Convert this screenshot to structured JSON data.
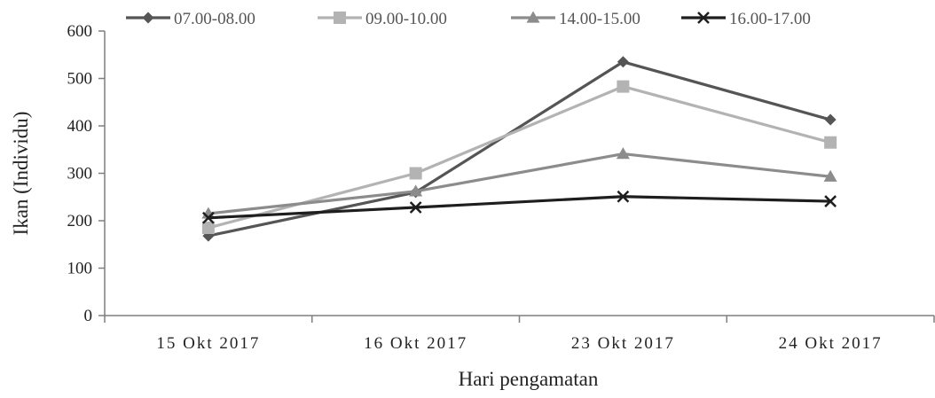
{
  "chart_data": {
    "type": "line",
    "categories": [
      "15 Okt 2017",
      "16 Okt 2017",
      "23 Okt 2017",
      "24 Okt 2017"
    ],
    "xlabel": "Hari pengamatan",
    "ylabel": "Ikan (Individu)",
    "ylim": [
      0,
      600
    ],
    "yticks": [
      0,
      100,
      200,
      300,
      400,
      500,
      600
    ],
    "grid": false,
    "legend_position": "top",
    "series": [
      {
        "name": "07.00-08.00",
        "values": [
          168,
          260,
          535,
          413
        ],
        "color": "#555555",
        "marker": "diamond"
      },
      {
        "name": "09.00-10.00",
        "values": [
          185,
          300,
          483,
          365
        ],
        "color": "#b3b3b3",
        "marker": "square"
      },
      {
        "name": "14.00-15.00",
        "values": [
          215,
          262,
          341,
          293
        ],
        "color": "#8c8c8c",
        "marker": "triangle"
      },
      {
        "name": "16.00-17.00",
        "values": [
          206,
          228,
          251,
          241
        ],
        "color": "#1e1e1e",
        "marker": "x"
      }
    ]
  }
}
